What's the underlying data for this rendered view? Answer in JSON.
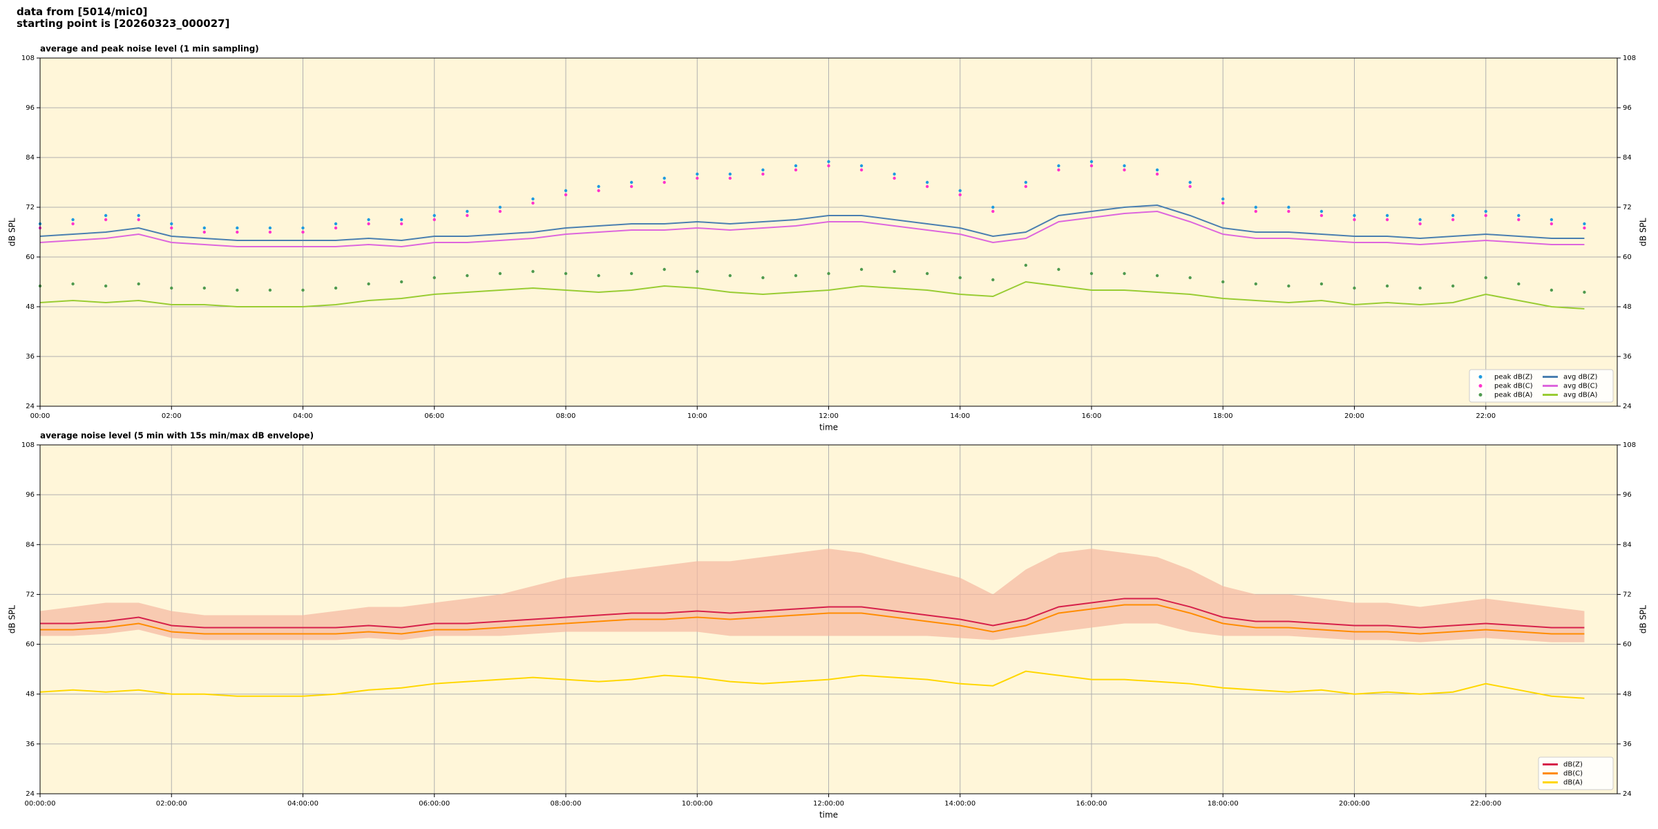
{
  "header": {
    "line1": "data from [5014/mic0]",
    "line2": "starting point is [20260323_000027]"
  },
  "chart_data": [
    {
      "type": "line",
      "title": "average and peak noise level (1 min sampling)",
      "xlabel": "time",
      "ylabel": "dB SPL",
      "background": "#fff6d9",
      "grid": true,
      "legend": "lower right",
      "legend_columns": 2,
      "x": [
        "00:00",
        "00:30",
        "01:00",
        "01:30",
        "02:00",
        "02:30",
        "03:00",
        "03:30",
        "04:00",
        "04:30",
        "05:00",
        "05:30",
        "06:00",
        "06:30",
        "07:00",
        "07:30",
        "08:00",
        "08:30",
        "09:00",
        "09:30",
        "10:00",
        "10:30",
        "11:00",
        "11:30",
        "12:00",
        "12:30",
        "13:00",
        "13:30",
        "14:00",
        "14:30",
        "15:00",
        "15:30",
        "16:00",
        "16:30",
        "17:00",
        "17:30",
        "18:00",
        "18:30",
        "19:00",
        "19:30",
        "20:00",
        "20:30",
        "21:00",
        "21:30",
        "22:00",
        "22:30",
        "23:00",
        "23:30"
      ],
      "xlim": [
        "00:00",
        "24:00"
      ],
      "xticks": [
        "00:00",
        "02:00",
        "04:00",
        "06:00",
        "08:00",
        "10:00",
        "12:00",
        "14:00",
        "16:00",
        "18:00",
        "20:00",
        "22:00"
      ],
      "ylim": [
        24,
        108
      ],
      "yticks": [
        24,
        36,
        48,
        60,
        72,
        84,
        96,
        108
      ],
      "series": [
        {
          "name": "peak dB(Z)",
          "style": "dots",
          "color": "#1f9be0",
          "values": [
            68,
            69,
            70,
            70,
            68,
            67,
            67,
            67,
            67,
            68,
            69,
            69,
            70,
            71,
            72,
            74,
            76,
            77,
            78,
            79,
            80,
            80,
            81,
            82,
            83,
            82,
            80,
            78,
            76,
            72,
            78,
            82,
            83,
            82,
            81,
            78,
            74,
            72,
            72,
            71,
            70,
            70,
            69,
            70,
            71,
            70,
            69,
            68
          ]
        },
        {
          "name": "peak dB(C)",
          "style": "dots",
          "color": "#ff33cc",
          "values": [
            67,
            68,
            69,
            69,
            67,
            66,
            66,
            66,
            66,
            67,
            68,
            68,
            69,
            70,
            71,
            73,
            75,
            76,
            77,
            78,
            79,
            79,
            80,
            81,
            82,
            81,
            79,
            77,
            75,
            71,
            77,
            81,
            82,
            81,
            80,
            77,
            73,
            71,
            71,
            70,
            69,
            69,
            68,
            69,
            70,
            69,
            68,
            67
          ]
        },
        {
          "name": "peak dB(A)",
          "style": "dots",
          "color": "#4f9a4f",
          "values": [
            53,
            53.5,
            53,
            53.5,
            52.5,
            52.5,
            52,
            52,
            52,
            52.5,
            53.5,
            54,
            55,
            55.5,
            56,
            56.5,
            56,
            55.5,
            56,
            57,
            56.5,
            55.5,
            55,
            55.5,
            56,
            57,
            56.5,
            56,
            55,
            54.5,
            58,
            57,
            56,
            56,
            55.5,
            55,
            54,
            53.5,
            53,
            53.5,
            52.5,
            53,
            52.5,
            53,
            55,
            53.5,
            52,
            51.5
          ]
        },
        {
          "name": "avg dB(Z)",
          "style": "line",
          "color": "#4a7fb0",
          "values": [
            65,
            65.5,
            66,
            67,
            65,
            64.5,
            64,
            64,
            64,
            64,
            64.5,
            64,
            65,
            65,
            65.5,
            66,
            67,
            67.5,
            68,
            68,
            68.5,
            68,
            68.5,
            69,
            70,
            70,
            69,
            68,
            67,
            65,
            66,
            70,
            71,
            72,
            72.5,
            70,
            67,
            66,
            66,
            65.5,
            65,
            65,
            64.5,
            65,
            65.5,
            65,
            64.5,
            64.5
          ]
        },
        {
          "name": "avg dB(C)",
          "style": "line",
          "color": "#dd66dd",
          "values": [
            63.5,
            64,
            64.5,
            65.5,
            63.5,
            63,
            62.5,
            62.5,
            62.5,
            62.5,
            63,
            62.5,
            63.5,
            63.5,
            64,
            64.5,
            65.5,
            66,
            66.5,
            66.5,
            67,
            66.5,
            67,
            67.5,
            68.5,
            68.5,
            67.5,
            66.5,
            65.5,
            63.5,
            64.5,
            68.5,
            69.5,
            70.5,
            71,
            68.5,
            65.5,
            64.5,
            64.5,
            64,
            63.5,
            63.5,
            63,
            63.5,
            64,
            63.5,
            63,
            63
          ]
        },
        {
          "name": "avg dB(A)",
          "style": "line",
          "color": "#99cc33",
          "values": [
            49,
            49.5,
            49,
            49.5,
            48.5,
            48.5,
            48,
            48,
            48,
            48.5,
            49.5,
            50,
            51,
            51.5,
            52,
            52.5,
            52,
            51.5,
            52,
            53,
            52.5,
            51.5,
            51,
            51.5,
            52,
            53,
            52.5,
            52,
            51,
            50.5,
            54,
            53,
            52,
            52,
            51.5,
            51,
            50,
            49.5,
            49,
            49.5,
            48.5,
            49,
            48.5,
            49,
            51,
            49.5,
            48,
            47.5
          ]
        }
      ]
    },
    {
      "type": "line",
      "title": "average noise level (5 min with 15s min/max dB envelope)",
      "xlabel": "time",
      "ylabel": "dB SPL",
      "background": "#fff6d9",
      "grid": true,
      "legend": "lower right",
      "legend_columns": 1,
      "x": [
        "00:00:00",
        "00:30:00",
        "01:00:00",
        "01:30:00",
        "02:00:00",
        "02:30:00",
        "03:00:00",
        "03:30:00",
        "04:00:00",
        "04:30:00",
        "05:00:00",
        "05:30:00",
        "06:00:00",
        "06:30:00",
        "07:00:00",
        "07:30:00",
        "08:00:00",
        "08:30:00",
        "09:00:00",
        "09:30:00",
        "10:00:00",
        "10:30:00",
        "11:00:00",
        "11:30:00",
        "12:00:00",
        "12:30:00",
        "13:00:00",
        "13:30:00",
        "14:00:00",
        "14:30:00",
        "15:00:00",
        "15:30:00",
        "16:00:00",
        "16:30:00",
        "17:00:00",
        "17:30:00",
        "18:00:00",
        "18:30:00",
        "19:00:00",
        "19:30:00",
        "20:00:00",
        "20:30:00",
        "21:00:00",
        "21:30:00",
        "22:00:00",
        "22:30:00",
        "23:00:00",
        "23:30:00"
      ],
      "xlim": [
        "00:00:00",
        "24:00:00"
      ],
      "xticks": [
        "00:00:00",
        "02:00:00",
        "04:00:00",
        "06:00:00",
        "08:00:00",
        "10:00:00",
        "12:00:00",
        "14:00:00",
        "16:00:00",
        "18:00:00",
        "20:00:00",
        "22:00:00"
      ],
      "ylim": [
        24,
        108
      ],
      "yticks": [
        24,
        36,
        48,
        60,
        72,
        84,
        96,
        108
      ],
      "envelope": {
        "color": "#f5b8a0",
        "min": [
          62,
          62,
          62.5,
          63.5,
          61.5,
          61,
          61,
          61,
          61,
          61,
          61.5,
          61,
          62,
          62,
          62,
          62.5,
          63,
          63,
          63,
          63,
          63,
          62,
          62,
          62,
          62,
          62,
          62,
          62,
          61.5,
          61,
          62,
          63,
          64,
          65,
          65,
          63,
          62,
          62,
          62,
          61.5,
          61,
          61,
          60.5,
          61,
          61.5,
          61,
          60.5,
          60.5
        ],
        "max": [
          68,
          69,
          70,
          70,
          68,
          67,
          67,
          67,
          67,
          68,
          69,
          69,
          70,
          71,
          72,
          74,
          76,
          77,
          78,
          79,
          80,
          80,
          81,
          82,
          83,
          82,
          80,
          78,
          76,
          72,
          78,
          82,
          83,
          82,
          81,
          78,
          74,
          72,
          72,
          71,
          70,
          70,
          69,
          70,
          71,
          70,
          69,
          68
        ]
      },
      "series": [
        {
          "name": "dB(Z)",
          "style": "line",
          "color": "#d6204a",
          "values": [
            65,
            65,
            65.5,
            66.5,
            64.5,
            64,
            64,
            64,
            64,
            64,
            64.5,
            64,
            65,
            65,
            65.5,
            66,
            66.5,
            67,
            67.5,
            67.5,
            68,
            67.5,
            68,
            68.5,
            69,
            69,
            68,
            67,
            66,
            64.5,
            66,
            69,
            70,
            71,
            71,
            69,
            66.5,
            65.5,
            65.5,
            65,
            64.5,
            64.5,
            64,
            64.5,
            65,
            64.5,
            64,
            64
          ]
        },
        {
          "name": "dB(C)",
          "style": "line",
          "color": "#ff8c00",
          "values": [
            63.5,
            63.5,
            64,
            65,
            63,
            62.5,
            62.5,
            62.5,
            62.5,
            62.5,
            63,
            62.5,
            63.5,
            63.5,
            64,
            64.5,
            65,
            65.5,
            66,
            66,
            66.5,
            66,
            66.5,
            67,
            67.5,
            67.5,
            66.5,
            65.5,
            64.5,
            63,
            64.5,
            67.5,
            68.5,
            69.5,
            69.5,
            67.5,
            65,
            64,
            64,
            63.5,
            63,
            63,
            62.5,
            63,
            63.5,
            63,
            62.5,
            62.5
          ]
        },
        {
          "name": "dB(A)",
          "style": "line",
          "color": "#ffd700",
          "values": [
            48.5,
            49,
            48.5,
            49,
            48,
            48,
            47.5,
            47.5,
            47.5,
            48,
            49,
            49.5,
            50.5,
            51,
            51.5,
            52,
            51.5,
            51,
            51.5,
            52.5,
            52,
            51,
            50.5,
            51,
            51.5,
            52.5,
            52,
            51.5,
            50.5,
            50,
            53.5,
            52.5,
            51.5,
            51.5,
            51,
            50.5,
            49.5,
            49,
            48.5,
            49,
            48,
            48.5,
            48,
            48.5,
            50.5,
            49,
            47.5,
            47
          ]
        }
      ]
    }
  ]
}
